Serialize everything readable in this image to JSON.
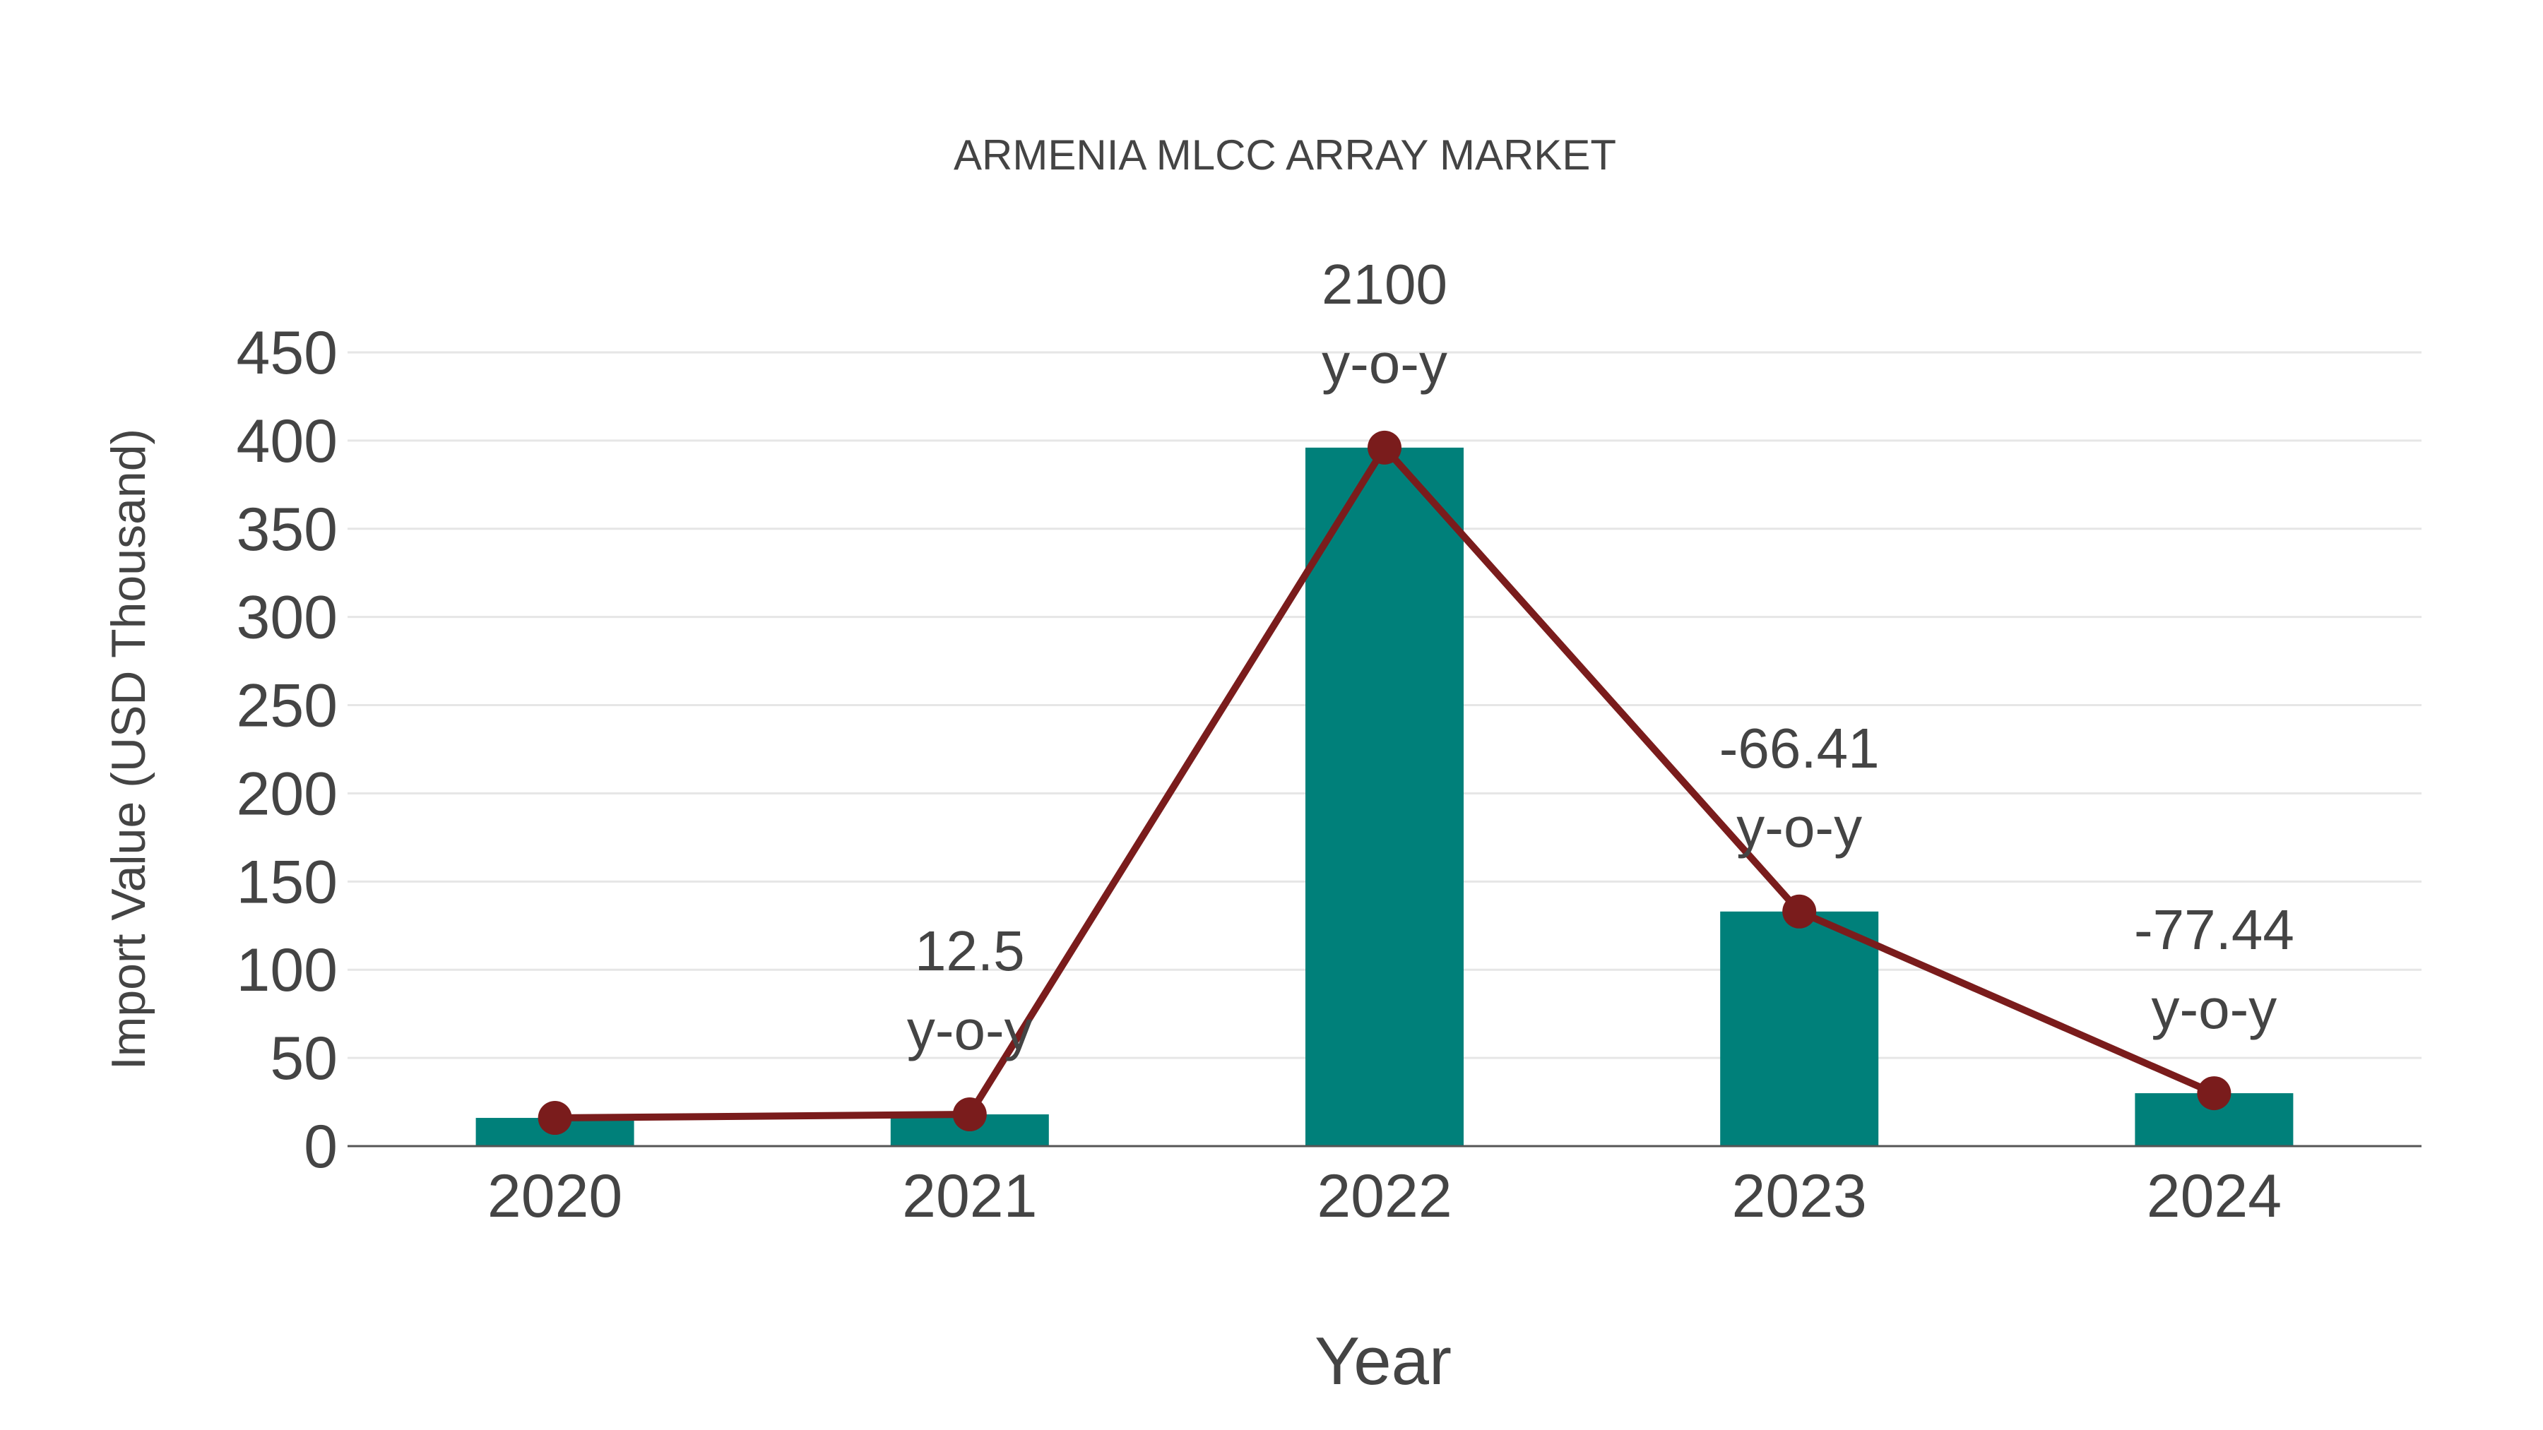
{
  "chart_data": {
    "type": "bar",
    "title": "ARMENIA MLCC ARRAY MARKET",
    "xlabel": "Year",
    "ylabel": "Import Value (USD Thousand)",
    "categories": [
      "2020",
      "2021",
      "2022",
      "2023",
      "2024"
    ],
    "values": [
      16,
      18,
      396,
      133,
      30
    ],
    "ylim": [
      0,
      450
    ],
    "yticks": [
      0,
      50,
      100,
      150,
      200,
      250,
      300,
      350,
      400,
      450
    ],
    "grid": true,
    "line_overlay": {
      "values": [
        16,
        18,
        396,
        133,
        30
      ]
    },
    "annotations": [
      {
        "category": "2021",
        "value": "12.5",
        "suffix": "y-o-y"
      },
      {
        "category": "2022",
        "value": "2100",
        "suffix": "y-o-y"
      },
      {
        "category": "2023",
        "value": "-66.41",
        "suffix": "y-o-y"
      },
      {
        "category": "2024",
        "value": "-77.44",
        "suffix": "y-o-y"
      }
    ],
    "colors": {
      "bar": "#00807a",
      "line": "#7a1c1c"
    }
  }
}
